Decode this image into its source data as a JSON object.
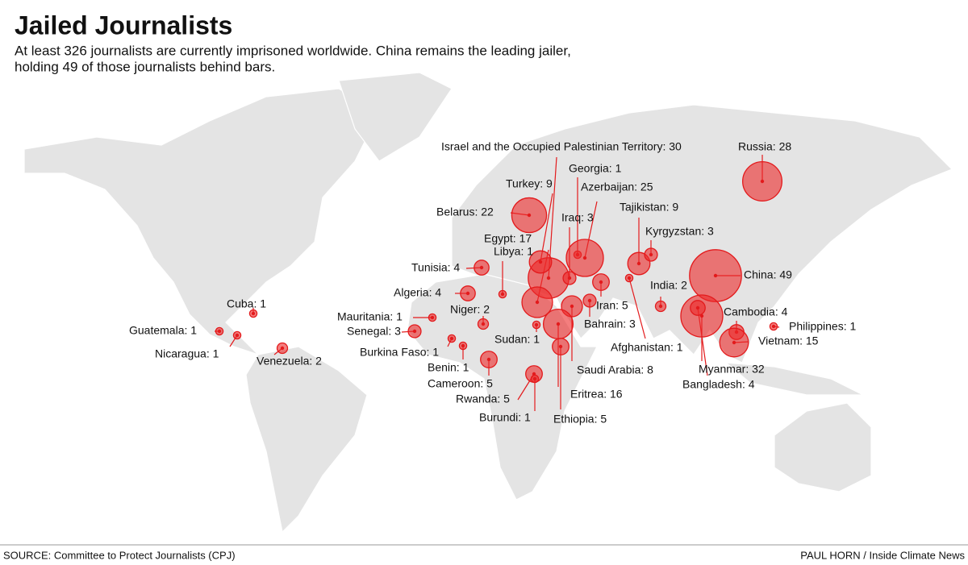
{
  "title": "Jailed Journalists",
  "subtitle": [
    "At least 326 journalists are currently imprisoned worldwide. China remains the leading jailer,",
    "holding 49 of those journalists behind bars."
  ],
  "points": [
    {
      "label": "Russia: 28",
      "value": 28
    },
    {
      "label": "China: 49",
      "value": 49
    },
    {
      "label": "Israel and the Occupied Palestinian Territory: 30",
      "value": 30
    },
    {
      "label": "Georgia: 1",
      "value": 1
    },
    {
      "label": "Turkey: 9",
      "value": 9
    },
    {
      "label": "Azerbaijan: 25",
      "value": 25
    },
    {
      "label": "Belarus: 22",
      "value": 22
    },
    {
      "label": "Iraq: 3",
      "value": 3
    },
    {
      "label": "Tajikistan: 9",
      "value": 9
    },
    {
      "label": "Kyrgyzstan: 3",
      "value": 3
    },
    {
      "label": "Egypt: 17",
      "value": 17
    },
    {
      "label": "Libya: 1",
      "value": 1
    },
    {
      "label": "Tunisia: 4",
      "value": 4
    },
    {
      "label": "Algeria: 4",
      "value": 4
    },
    {
      "label": "India: 2",
      "value": 2
    },
    {
      "label": "Iran: 5",
      "value": 5
    },
    {
      "label": "Niger: 2",
      "value": 2
    },
    {
      "label": "Mauritania: 1",
      "value": 1
    },
    {
      "label": "Senegal: 3",
      "value": 3
    },
    {
      "label": "Bahrain: 3",
      "value": 3
    },
    {
      "label": "Saudi Arabia: 8",
      "value": 8
    },
    {
      "label": "Eritrea: 16",
      "value": 16
    },
    {
      "label": "Afghanistan: 1",
      "value": 1
    },
    {
      "label": "Sudan: 1",
      "value": 1
    },
    {
      "label": "Burkina Faso: 1",
      "value": 1
    },
    {
      "label": "Benin: 1",
      "value": 1
    },
    {
      "label": "Cameroon: 5",
      "value": 5
    },
    {
      "label": "Rwanda: 5",
      "value": 5
    },
    {
      "label": "Burundi: 1",
      "value": 1
    },
    {
      "label": "Ethiopia: 5",
      "value": 5
    },
    {
      "label": "Myanmar: 32",
      "value": 32
    },
    {
      "label": "Bangladesh: 4",
      "value": 4
    },
    {
      "label": "Cambodia: 4",
      "value": 4
    },
    {
      "label": "Vietnam: 15",
      "value": 15
    },
    {
      "label": "Philippines: 1",
      "value": 1
    },
    {
      "label": "Cuba: 1",
      "value": 1
    },
    {
      "label": "Guatemala: 1",
      "value": 1
    },
    {
      "label": "Nicaragua: 1",
      "value": 1
    },
    {
      "label": "Venezuela: 2",
      "value": 2
    }
  ],
  "source": "SOURCE: Committee to Protect Journalists (CPJ)",
  "credit": "PAUL HORN / Inside Climate News"
}
